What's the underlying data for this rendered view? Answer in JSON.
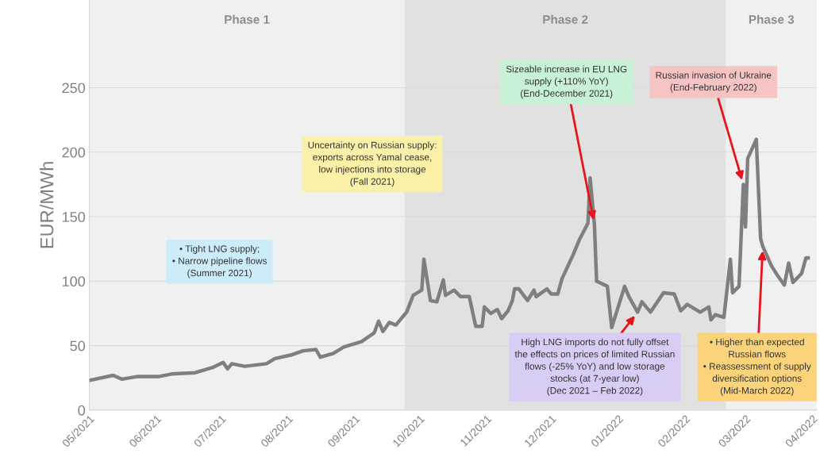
{
  "chart_data": {
    "type": "line",
    "ylabel": "EUR/MWh",
    "x": [
      "2021-05-01",
      "2021-05-12",
      "2021-05-16",
      "2021-05-23",
      "2021-06-02",
      "2021-06-08",
      "2021-06-19",
      "2021-06-27",
      "2021-07-02",
      "2021-07-04",
      "2021-07-06",
      "2021-07-12",
      "2021-07-22",
      "2021-07-26",
      "2021-08-03",
      "2021-08-08",
      "2021-08-14",
      "2021-08-16",
      "2021-08-22",
      "2021-08-27",
      "2021-09-04",
      "2021-09-10",
      "2021-09-12",
      "2021-09-14",
      "2021-09-17",
      "2021-09-20",
      "2021-09-25",
      "2021-09-28",
      "2021-10-02",
      "2021-10-03",
      "2021-10-06",
      "2021-10-09",
      "2021-10-12",
      "2021-10-13",
      "2021-10-17",
      "2021-10-20",
      "2021-10-24",
      "2021-10-27",
      "2021-10-30",
      "2021-10-31",
      "2021-11-03",
      "2021-11-06",
      "2021-11-08",
      "2021-11-11",
      "2021-11-13",
      "2021-11-14",
      "2021-11-16",
      "2021-11-20",
      "2021-11-23",
      "2021-11-24",
      "2021-11-29",
      "2021-12-01",
      "2021-12-04",
      "2021-12-06",
      "2021-12-11",
      "2021-12-14",
      "2021-12-18",
      "2021-12-19",
      "2021-12-21",
      "2021-12-22",
      "2021-12-27",
      "2021-12-29",
      "2022-01-04",
      "2022-01-06",
      "2022-01-10",
      "2022-01-12",
      "2022-01-16",
      "2022-01-22",
      "2022-01-27",
      "2022-01-30",
      "2022-02-02",
      "2022-02-08",
      "2022-02-12",
      "2022-02-13",
      "2022-02-15",
      "2022-02-19",
      "2022-02-22",
      "2022-02-23",
      "2022-02-26",
      "2022-02-28",
      "2022-03-01",
      "2022-03-02",
      "2022-03-06",
      "2022-03-08",
      "2022-03-09",
      "2022-03-13",
      "2022-03-16",
      "2022-03-19",
      "2022-03-21",
      "2022-03-23",
      "2022-03-27",
      "2022-03-29",
      "2022-03-30"
    ],
    "series": [
      {
        "color": "#7f7f7f",
        "values": [
          23,
          27,
          24,
          26,
          26,
          28,
          29,
          33,
          37,
          32,
          36,
          34,
          36,
          40,
          43,
          46,
          47,
          41,
          44,
          49,
          53,
          60,
          69,
          61,
          68,
          66,
          76,
          89,
          93,
          117,
          85,
          84,
          101,
          89,
          93,
          88,
          88,
          65,
          65,
          80,
          75,
          78,
          71,
          77,
          85,
          94,
          94,
          85,
          93,
          88,
          94,
          90,
          90,
          102,
          120,
          132,
          145,
          180,
          144,
          100,
          96,
          64,
          96,
          88,
          76,
          84,
          76,
          91,
          90,
          77,
          82,
          76,
          80,
          70,
          74,
          72,
          117,
          91,
          96,
          175,
          142,
          195,
          210,
          133,
          127,
          112,
          104,
          97,
          114,
          99,
          106,
          118,
          118
        ]
      }
    ],
    "xlim": [
      "2021-05-01",
      "2022-04-03"
    ],
    "xticks": [
      {
        "value": "2021-05-01",
        "label": "05/2021"
      },
      {
        "value": "2021-06-01",
        "label": "06/2021"
      },
      {
        "value": "2021-07-01",
        "label": "07/2021"
      },
      {
        "value": "2021-08-01",
        "label": "08/2021"
      },
      {
        "value": "2021-09-01",
        "label": "09/2021"
      },
      {
        "value": "2021-10-01",
        "label": "10/2021"
      },
      {
        "value": "2021-11-01",
        "label": "11/2021"
      },
      {
        "value": "2021-12-01",
        "label": "12/2021"
      },
      {
        "value": "2022-01-01",
        "label": "01/2022"
      },
      {
        "value": "2022-02-01",
        "label": "02/2022"
      },
      {
        "value": "2022-03-01",
        "label": "03/2022"
      },
      {
        "value": "2022-04-01",
        "label": "04/2022"
      }
    ],
    "ylim": [
      0,
      318
    ],
    "yticks": [
      0,
      50,
      100,
      150,
      200,
      250
    ],
    "grid": "y",
    "bands": [
      {
        "axis": "x",
        "from": "2021-05-01",
        "to": "2021-09-24",
        "label": "Phase 1",
        "color": "#f0f0f0"
      },
      {
        "axis": "x",
        "from": "2021-09-24",
        "to": "2022-02-20",
        "label": "Phase 2",
        "color": "#e1e1e1"
      },
      {
        "axis": "x",
        "from": "2022-02-20",
        "to": "2022-04-03",
        "label": "Phase 3",
        "color": "#f0f0f0"
      }
    ],
    "annotations": [
      "• Tight LNG supply;\n• Narrow pipeline flows\n(Summer 2021)",
      "Uncertainty on Russian supply:\nexports across Yamal cease,\nlow injections into storage\n(Fall 2021)",
      {
        "text": "Sizeable increase in EU LNG\nsupply (+110% YoY)\n(End-December 2021)",
        "x": "2021-12-21",
        "y": 144
      },
      {
        "text": "Russian invasion of Ukraine\n(End-February 2022)",
        "x": "2022-02-28",
        "y": 175
      },
      {
        "text": "High LNG imports do not fully offset\nthe effects on prices of limited Russian\nflows (-25% YoY) and low storage\nstocks (at 7-year low)\n(Dec 2021 – Feb 2022)",
        "x": "2022-01-10",
        "y": 76
      },
      {
        "text": "• Higher than expected\nRussian flows\n• Reassessment of supply\ndiversification options\n(Mid-March 2022)",
        "x": "2022-03-09",
        "y": 127
      }
    ]
  }
}
